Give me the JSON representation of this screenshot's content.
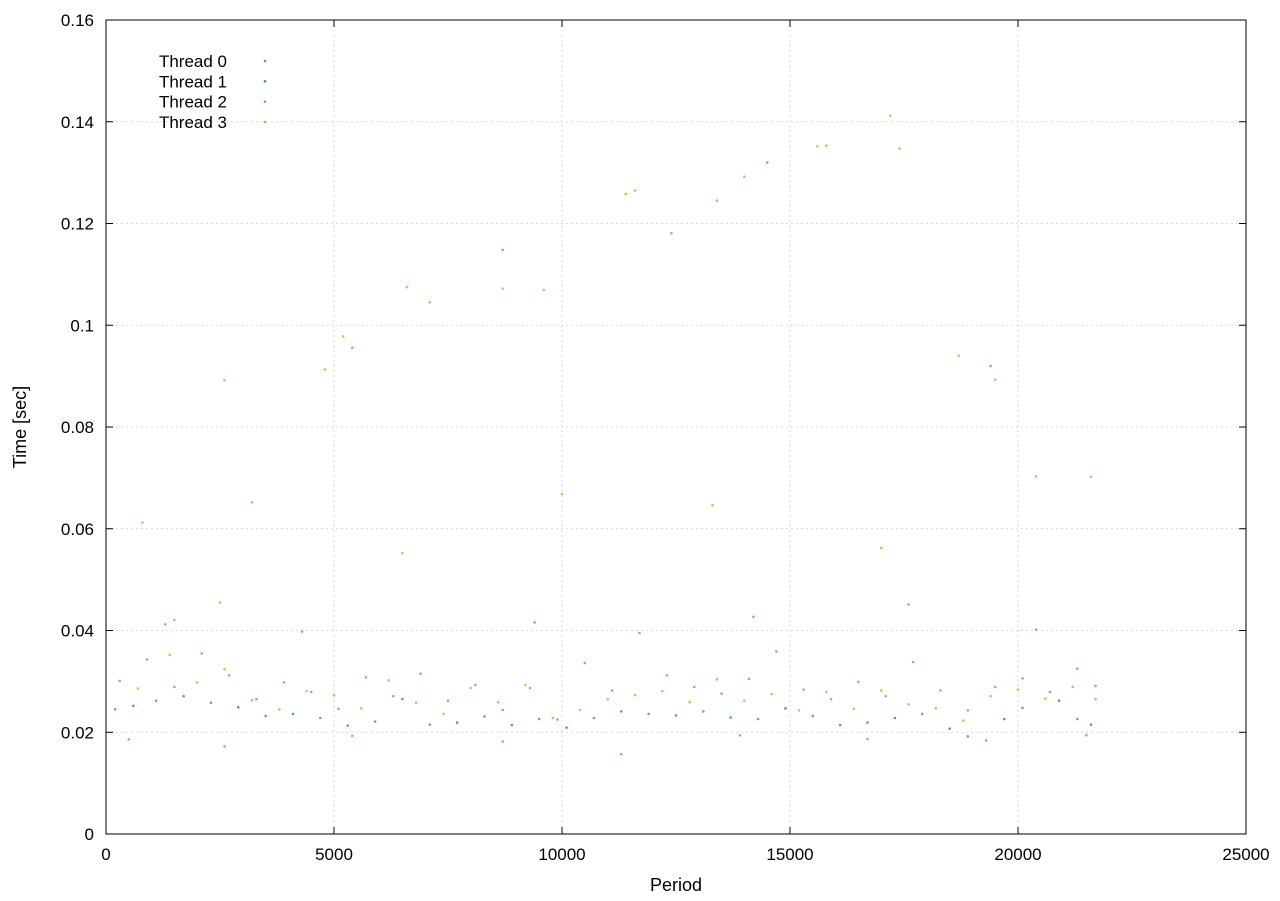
{
  "chart_data": {
    "type": "scatter",
    "title": "",
    "xlabel": "Period",
    "ylabel": "Time [sec]",
    "xlim": [
      0,
      25000
    ],
    "ylim": [
      0,
      0.16
    ],
    "x_ticks": [
      {
        "value": 0,
        "label": "0"
      },
      {
        "value": 5000,
        "label": "5000"
      },
      {
        "value": 10000,
        "label": "10000"
      },
      {
        "value": 15000,
        "label": "15000"
      },
      {
        "value": 20000,
        "label": "20000"
      },
      {
        "value": 25000,
        "label": "25000"
      }
    ],
    "y_ticks": [
      {
        "value": 0,
        "label": "0"
      },
      {
        "value": 0.02,
        "label": "0.02"
      },
      {
        "value": 0.04,
        "label": "0.04"
      },
      {
        "value": 0.06,
        "label": "0.06"
      },
      {
        "value": 0.08,
        "label": "0.08"
      },
      {
        "value": 0.1,
        "label": "0.1"
      },
      {
        "value": 0.12,
        "label": "0.12"
      },
      {
        "value": 0.14,
        "label": "0.14"
      },
      {
        "value": 0.16,
        "label": "0.16"
      }
    ],
    "grid": true,
    "legend_position": "top-left",
    "series": [
      {
        "name": "Thread 0",
        "color": "#9a6fb0",
        "points": [
          [
            200,
            0.0245
          ],
          [
            1100,
            0.0262
          ],
          [
            2300,
            0.0258
          ],
          [
            3500,
            0.0232
          ],
          [
            4700,
            0.0228
          ],
          [
            5900,
            0.0221
          ],
          [
            7100,
            0.0215
          ],
          [
            8300,
            0.0231
          ],
          [
            9500,
            0.0226
          ],
          [
            10700,
            0.0228
          ],
          [
            11900,
            0.0236
          ],
          [
            13100,
            0.0241
          ],
          [
            14300,
            0.0226
          ],
          [
            15500,
            0.0232
          ],
          [
            16700,
            0.0219
          ],
          [
            17900,
            0.0236
          ],
          [
            18900,
            0.0192
          ],
          [
            20100,
            0.0248
          ],
          [
            21300,
            0.0226
          ]
        ]
      },
      {
        "name": "Thread 1",
        "color": "#1e9e73",
        "points": [
          [
            600,
            0.0252
          ],
          [
            1700,
            0.0271
          ],
          [
            2900,
            0.0249
          ],
          [
            4100,
            0.0236
          ],
          [
            5300,
            0.0213
          ],
          [
            6500,
            0.0265
          ],
          [
            7700,
            0.0219
          ],
          [
            8900,
            0.0214
          ],
          [
            10100,
            0.0209
          ],
          [
            11300,
            0.0241
          ],
          [
            12500,
            0.0233
          ],
          [
            13700,
            0.0229
          ],
          [
            14900,
            0.0247
          ],
          [
            16100,
            0.0214
          ],
          [
            17300,
            0.0228
          ],
          [
            18500,
            0.0207
          ],
          [
            19700,
            0.0226
          ],
          [
            20900,
            0.0262
          ],
          [
            21600,
            0.0215
          ]
        ]
      },
      {
        "name": "Thread 2",
        "color": "#5aa7d8",
        "points": [
          [
            300,
            0.0301
          ],
          [
            900,
            0.0343
          ],
          [
            1500,
            0.0289
          ],
          [
            2100,
            0.0355
          ],
          [
            2700,
            0.0312
          ],
          [
            3300,
            0.0265
          ],
          [
            3900,
            0.0298
          ],
          [
            4500,
            0.0279
          ],
          [
            5100,
            0.0246
          ],
          [
            5700,
            0.0308
          ],
          [
            6300,
            0.0271
          ],
          [
            6900,
            0.0315
          ],
          [
            7500,
            0.0262
          ],
          [
            8100,
            0.0293
          ],
          [
            8700,
            0.0244
          ],
          [
            9300,
            0.0287
          ],
          [
            9900,
            0.0225
          ],
          [
            10500,
            0.0336
          ],
          [
            11100,
            0.0282
          ],
          [
            11700,
            0.0395
          ],
          [
            12300,
            0.0312
          ],
          [
            12900,
            0.0289
          ],
          [
            13500,
            0.0276
          ],
          [
            14100,
            0.0305
          ],
          [
            14700,
            0.0359
          ],
          [
            15300,
            0.0284
          ],
          [
            15900,
            0.0265
          ],
          [
            16500,
            0.0299
          ],
          [
            17100,
            0.0271
          ],
          [
            17700,
            0.0338
          ],
          [
            18300,
            0.0282
          ],
          [
            18900,
            0.0243
          ],
          [
            19500,
            0.0289
          ],
          [
            20100,
            0.0306
          ],
          [
            20700,
            0.0279
          ],
          [
            21300,
            0.0325
          ],
          [
            21700,
            0.0291
          ],
          [
            500,
            0.0186
          ],
          [
            2600,
            0.0172
          ],
          [
            5400,
            0.0193
          ],
          [
            8700,
            0.0182
          ],
          [
            11300,
            0.0157
          ],
          [
            13900,
            0.0194
          ],
          [
            16700,
            0.0187
          ],
          [
            19300,
            0.0184
          ],
          [
            21500,
            0.0194
          ],
          [
            1300,
            0.0412
          ],
          [
            4300,
            0.0398
          ],
          [
            9400,
            0.0416
          ],
          [
            14200,
            0.0427
          ],
          [
            17600,
            0.0451
          ],
          [
            20400,
            0.0402
          ],
          [
            5400,
            0.0956
          ],
          [
            8700,
            0.1148
          ],
          [
            12400,
            0.1181
          ],
          [
            14500,
            0.132
          ],
          [
            19400,
            0.092
          ]
        ]
      },
      {
        "name": "Thread 3",
        "color": "#e0a82e",
        "points": [
          [
            700,
            0.0286
          ],
          [
            1400,
            0.0352
          ],
          [
            2000,
            0.0298
          ],
          [
            2600,
            0.0324
          ],
          [
            3200,
            0.0263
          ],
          [
            3800,
            0.0245
          ],
          [
            4400,
            0.0281
          ],
          [
            5000,
            0.0273
          ],
          [
            5600,
            0.0247
          ],
          [
            6200,
            0.0302
          ],
          [
            6800,
            0.0258
          ],
          [
            7400,
            0.0236
          ],
          [
            8000,
            0.0287
          ],
          [
            8600,
            0.0259
          ],
          [
            9200,
            0.0293
          ],
          [
            9800,
            0.0228
          ],
          [
            10400,
            0.0244
          ],
          [
            11000,
            0.0265
          ],
          [
            11600,
            0.0273
          ],
          [
            12200,
            0.0281
          ],
          [
            12800,
            0.0259
          ],
          [
            13400,
            0.0304
          ],
          [
            14000,
            0.0262
          ],
          [
            14600,
            0.0275
          ],
          [
            15200,
            0.0243
          ],
          [
            15800,
            0.0279
          ],
          [
            16400,
            0.0246
          ],
          [
            17000,
            0.0282
          ],
          [
            17600,
            0.0255
          ],
          [
            18200,
            0.0247
          ],
          [
            18800,
            0.0223
          ],
          [
            19400,
            0.0271
          ],
          [
            20000,
            0.0284
          ],
          [
            20600,
            0.0266
          ],
          [
            21200,
            0.0289
          ],
          [
            21700,
            0.0265
          ],
          [
            1500,
            0.0421
          ],
          [
            2500,
            0.0455
          ],
          [
            6500,
            0.0552
          ],
          [
            10000,
            0.0668
          ],
          [
            13300,
            0.0646
          ],
          [
            17000,
            0.0562
          ],
          [
            2600,
            0.0892
          ],
          [
            4800,
            0.0913
          ],
          [
            7100,
            0.1045
          ],
          [
            8700,
            0.1072
          ],
          [
            11600,
            0.1265
          ],
          [
            14000,
            0.1292
          ],
          [
            15800,
            0.1353
          ],
          [
            17200,
            0.1412
          ],
          [
            19500,
            0.0893
          ],
          [
            21600,
            0.0702
          ],
          [
            800,
            0.0612
          ],
          [
            3200,
            0.0652
          ],
          [
            5200,
            0.0978
          ],
          [
            6600,
            0.1075
          ],
          [
            9600,
            0.1069
          ],
          [
            11400,
            0.1258
          ],
          [
            13400,
            0.1245
          ],
          [
            15600,
            0.1352
          ],
          [
            17400,
            0.1347
          ],
          [
            18700,
            0.094
          ],
          [
            20400,
            0.0703
          ]
        ]
      }
    ]
  }
}
